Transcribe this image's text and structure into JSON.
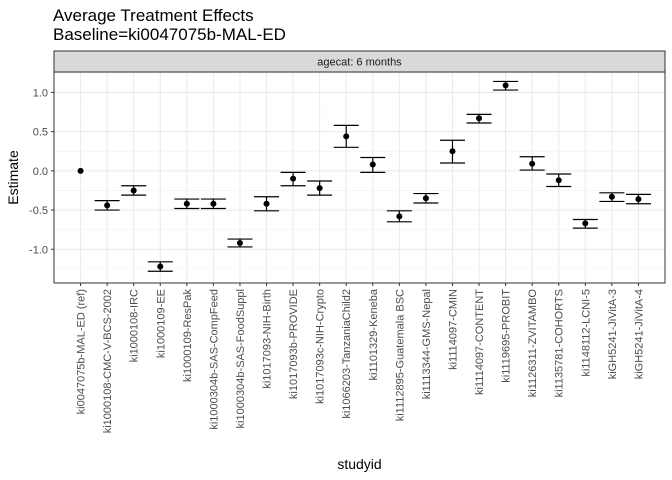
{
  "chart_data": {
    "type": "errorbar-point",
    "title": "Average Treatment Effects",
    "subtitle": "Baseline=ki0047075b-MAL-ED",
    "facet_label": "agecat: 6 months",
    "xlabel": "studyid",
    "ylabel": "Estimate",
    "ylim": [
      -1.43,
      1.26
    ],
    "yticks": [
      -1.0,
      -0.5,
      0.0,
      0.5,
      1.0
    ],
    "ytick_labels": [
      "-1.0",
      "-0.5",
      "0.0",
      "0.5",
      "1.0"
    ],
    "grid": true,
    "categories": [
      "ki0047075b-MAL-ED (ref)",
      "ki1000108-CMC-V-BCS-2002",
      "ki1000108-IRC",
      "ki1000109-EE",
      "ki1000109-ResPak",
      "ki1000304b-SAS-CompFeed",
      "ki1000304b-SAS-FoodSuppl",
      "ki1017093-NIH-Birth",
      "ki1017093b-PROVIDE",
      "ki1017093c-NIH-Crypto",
      "ki1066203-TanzaniaChild2",
      "ki1101329-Keneba",
      "ki1112895-Guatemala BSC",
      "ki1113344-GMS-Nepal",
      "ki1114097-CMIN",
      "ki1114097-CONTENT",
      "ki1119695-PROBIT",
      "ki1126311-ZVITAMBO",
      "ki1135781-COHORTS",
      "ki1148112-LCNI-5",
      "kiGH5241-JiVitA-3",
      "kiGH5241-JiVitA-4"
    ],
    "estimate": [
      0.0,
      -0.44,
      -0.25,
      -1.22,
      -0.42,
      -0.42,
      -0.92,
      -0.42,
      -0.1,
      -0.22,
      0.44,
      0.08,
      -0.58,
      -0.35,
      0.25,
      0.67,
      1.09,
      0.09,
      -0.12,
      -0.67,
      -0.33,
      -0.36
    ],
    "ci_lower": [
      null,
      -0.5,
      -0.31,
      -1.28,
      -0.48,
      -0.48,
      -0.97,
      -0.51,
      -0.19,
      -0.31,
      0.3,
      -0.02,
      -0.65,
      -0.41,
      0.1,
      0.61,
      1.03,
      0.01,
      -0.2,
      -0.73,
      -0.39,
      -0.42
    ],
    "ci_upper": [
      null,
      -0.38,
      -0.19,
      -1.16,
      -0.36,
      -0.36,
      -0.87,
      -0.33,
      -0.02,
      -0.13,
      0.58,
      0.17,
      -0.51,
      -0.29,
      0.39,
      0.72,
      1.14,
      0.18,
      -0.04,
      -0.62,
      -0.28,
      -0.3
    ]
  }
}
